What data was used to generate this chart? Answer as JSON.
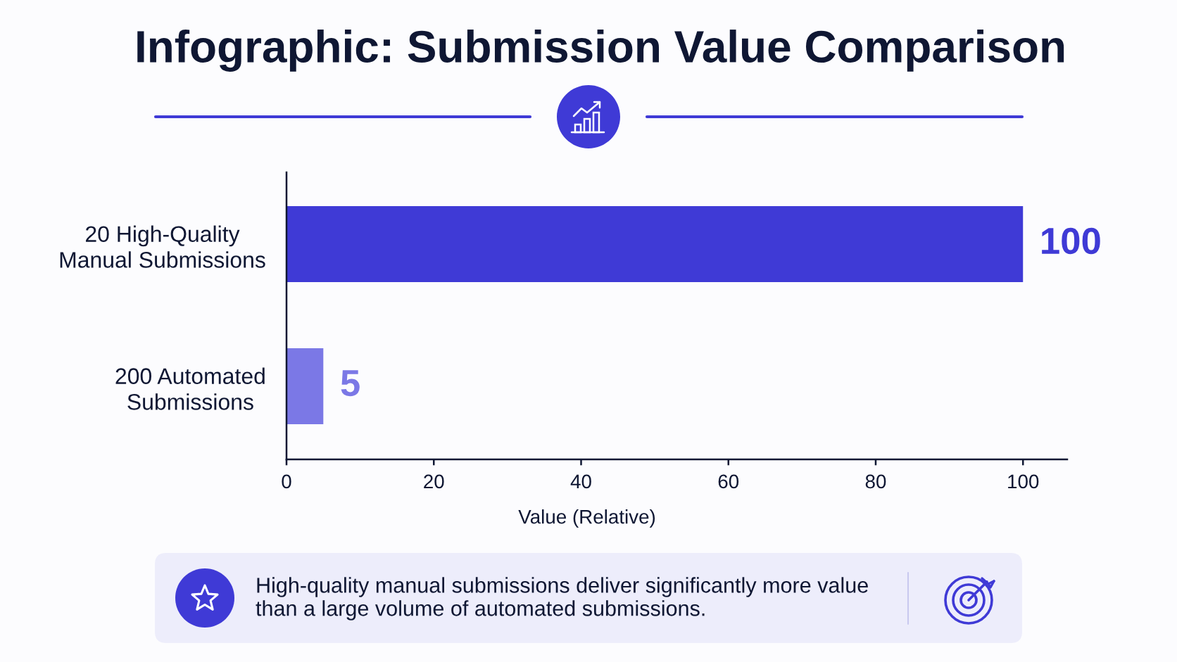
{
  "chart_data": {
    "type": "bar",
    "orientation": "horizontal",
    "title": "Infographic: Submission Value Comparison",
    "xlabel": "Value (Relative)",
    "categories": [
      "20 High-Quality\nManual Submissions",
      "200 Automated\nSubmissions"
    ],
    "values": [
      100,
      5
    ],
    "colors": [
      "#3f3ad6",
      "#7b78e6"
    ],
    "xlim": [
      0,
      106
    ],
    "xticks": [
      0,
      20,
      40,
      60,
      80,
      100
    ],
    "data_labels": true,
    "grid": false,
    "annotations": [
      "High-quality manual submissions deliver significantly more value\nthan a large volume of automated submissions."
    ]
  }
}
